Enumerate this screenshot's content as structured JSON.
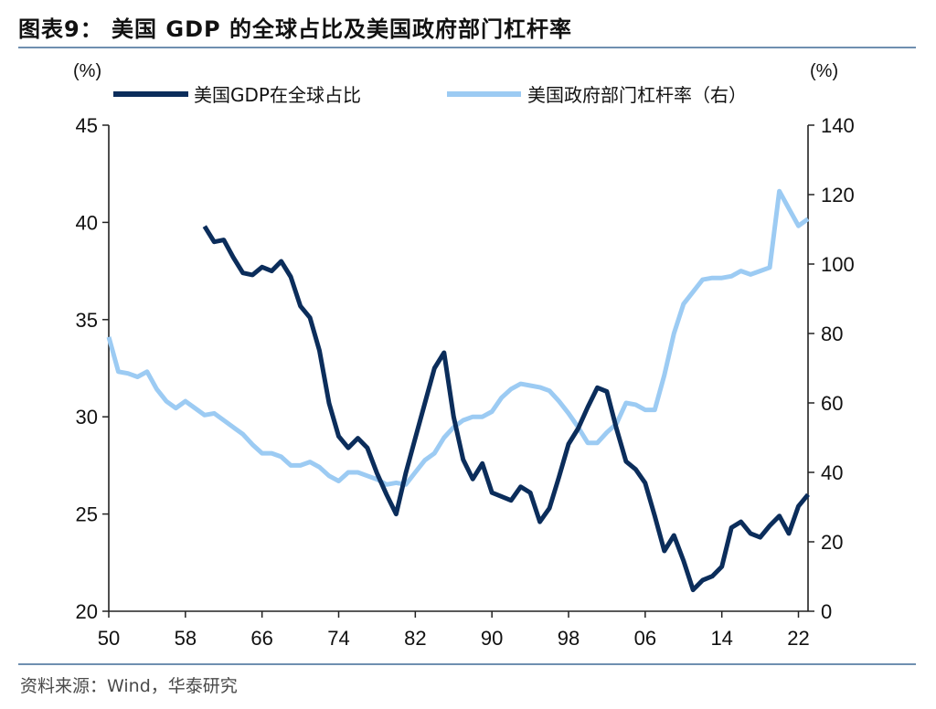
{
  "title": "图表9： 美国 GDP 的全球占比及美国政府部门杠杆率",
  "source": "资料来源：Wind，华泰研究",
  "colors": {
    "gdp_share": "#0b2d5b",
    "gov_leverage": "#9ccbf3",
    "rule": "#6f8fb0"
  },
  "chart_data": {
    "type": "line",
    "left_unit": "(%)",
    "right_unit": "(%)",
    "x_ticks": [
      "50",
      "58",
      "66",
      "74",
      "82",
      "90",
      "98",
      "06",
      "14",
      "22"
    ],
    "y_left_ticks": [
      "20",
      "25",
      "30",
      "35",
      "40",
      "45"
    ],
    "y_right_ticks": [
      "0",
      "20",
      "40",
      "60",
      "80",
      "100",
      "120",
      "140"
    ],
    "xlim": [
      1950,
      2023
    ],
    "ylim_left": [
      20,
      45
    ],
    "ylim_right": [
      0,
      140
    ],
    "legend_position": "top",
    "series": [
      {
        "name": "美国GDP在全球占比",
        "axis": "left",
        "x": [
          1960,
          1961,
          1962,
          1963,
          1964,
          1965,
          1966,
          1967,
          1968,
          1969,
          1970,
          1971,
          1972,
          1973,
          1974,
          1975,
          1976,
          1977,
          1978,
          1979,
          1980,
          1981,
          1982,
          1983,
          1984,
          1985,
          1986,
          1987,
          1988,
          1989,
          1990,
          1991,
          1992,
          1993,
          1994,
          1995,
          1996,
          1997,
          1998,
          1999,
          2000,
          2001,
          2002,
          2003,
          2004,
          2005,
          2006,
          2007,
          2008,
          2009,
          2010,
          2011,
          2012,
          2013,
          2014,
          2015,
          2016,
          2017,
          2018,
          2019,
          2020,
          2021,
          2022,
          2023
        ],
        "values": [
          39.8,
          39.0,
          39.1,
          38.2,
          37.4,
          37.3,
          37.7,
          37.5,
          38.0,
          37.2,
          35.7,
          35.1,
          33.4,
          30.7,
          29.0,
          28.4,
          28.9,
          28.4,
          27.1,
          26.0,
          25.0,
          27.1,
          28.9,
          30.7,
          32.5,
          33.3,
          30.0,
          27.8,
          26.8,
          27.6,
          26.1,
          25.9,
          25.7,
          26.4,
          26.1,
          24.6,
          25.3,
          26.9,
          28.6,
          29.4,
          30.5,
          31.5,
          31.3,
          29.4,
          27.7,
          27.3,
          26.6,
          24.9,
          23.1,
          23.9,
          22.6,
          21.1,
          21.6,
          21.8,
          22.3,
          24.3,
          24.6,
          24.0,
          23.8,
          24.4,
          24.9,
          24.0,
          25.4,
          26.0
        ]
      },
      {
        "name": "美国政府部门杠杆率（右）",
        "axis": "right",
        "x": [
          1950,
          1951,
          1952,
          1953,
          1954,
          1955,
          1956,
          1957,
          1958,
          1959,
          1960,
          1961,
          1962,
          1963,
          1964,
          1965,
          1966,
          1967,
          1968,
          1969,
          1970,
          1971,
          1972,
          1973,
          1974,
          1975,
          1976,
          1977,
          1978,
          1979,
          1980,
          1981,
          1982,
          1983,
          1984,
          1985,
          1986,
          1987,
          1988,
          1989,
          1990,
          1991,
          1992,
          1993,
          1994,
          1995,
          1996,
          1997,
          1998,
          1999,
          2000,
          2001,
          2002,
          2003,
          2004,
          2005,
          2006,
          2007,
          2008,
          2009,
          2010,
          2011,
          2012,
          2013,
          2014,
          2015,
          2016,
          2017,
          2018,
          2019,
          2020,
          2021,
          2022,
          2023
        ],
        "values": [
          79,
          69,
          68.5,
          67.5,
          69,
          64,
          60.5,
          58.5,
          60.5,
          58.5,
          56.5,
          57,
          55,
          53,
          51,
          48,
          45.5,
          45.5,
          44.5,
          42,
          42,
          43,
          41.5,
          39,
          37.5,
          40,
          40,
          39,
          38,
          36.5,
          37,
          36.5,
          40,
          43.5,
          45.5,
          50,
          53,
          55,
          56,
          56,
          57.5,
          61.5,
          64,
          65.5,
          65,
          64.5,
          63.5,
          60.5,
          57,
          53,
          48.5,
          48.5,
          51.5,
          54,
          60,
          59.5,
          58,
          58,
          68,
          80,
          88.5,
          92,
          95.5,
          96,
          96,
          96.5,
          98,
          97,
          98,
          99,
          121,
          116,
          111,
          113
        ]
      }
    ]
  }
}
